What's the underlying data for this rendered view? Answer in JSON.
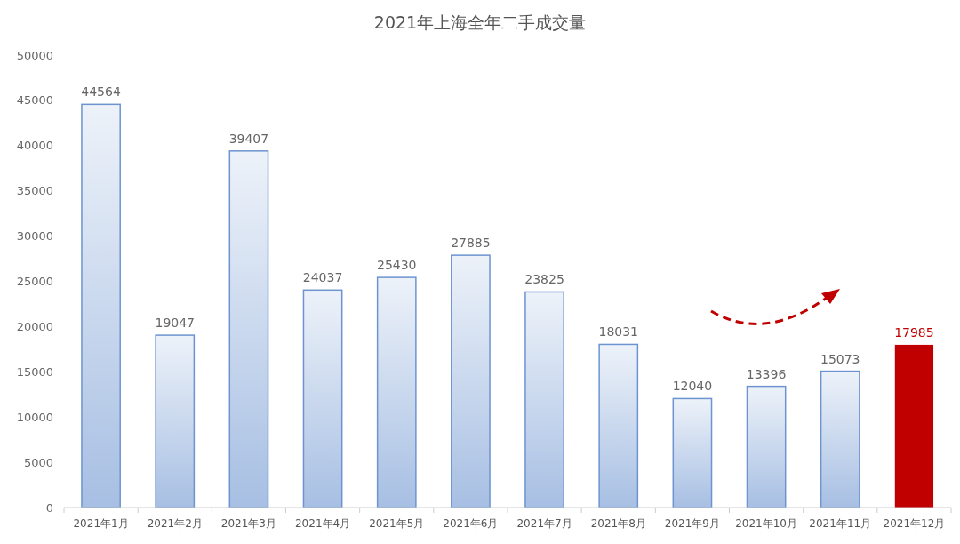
{
  "chart_data": {
    "type": "bar",
    "title": "2021年上海全年二手成交量",
    "categories": [
      "2021年1月",
      "2021年2月",
      "2021年3月",
      "2021年4月",
      "2021年5月",
      "2021年6月",
      "2021年7月",
      "2021年8月",
      "2021年9月",
      "2021年10月",
      "2021年11月",
      "2021年12月"
    ],
    "values": [
      44564,
      19047,
      39407,
      24037,
      25430,
      27885,
      23825,
      18031,
      12040,
      13396,
      15073,
      17985
    ],
    "colors": [
      "#6d94d0",
      "#6d94d0",
      "#6d94d0",
      "#6d94d0",
      "#6d94d0",
      "#6d94d0",
      "#6d94d0",
      "#6d94d0",
      "#6d94d0",
      "#6d94d0",
      "#6d94d0",
      "#c00000"
    ],
    "ylim": [
      0,
      50000
    ],
    "yticks": [
      0,
      5000,
      10000,
      15000,
      20000,
      25000,
      30000,
      35000,
      40000,
      45000,
      50000
    ],
    "data_labels": true,
    "grid": false
  }
}
